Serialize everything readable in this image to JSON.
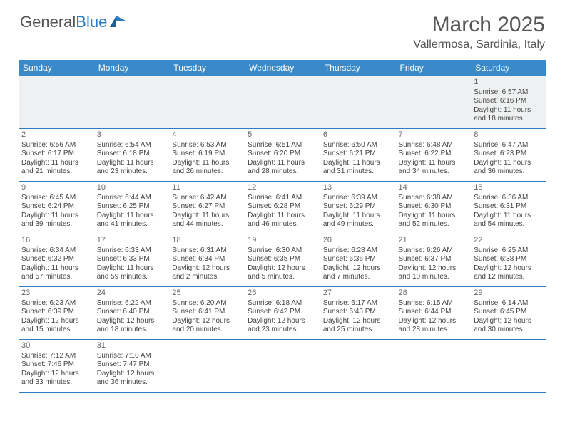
{
  "logo": {
    "general": "General",
    "blue": "Blue"
  },
  "title": "March 2025",
  "location": "Vallermosa, Sardinia, Italy",
  "colors": {
    "header_bg": "#3a89c9",
    "border": "#2d7bc0",
    "empty_bg": "#eff0f1",
    "text": "#444444"
  },
  "day_names": [
    "Sunday",
    "Monday",
    "Tuesday",
    "Wednesday",
    "Thursday",
    "Friday",
    "Saturday"
  ],
  "first_weekday_index": 6,
  "days": [
    {
      "n": 1,
      "sr": "6:57 AM",
      "ss": "6:16 PM",
      "dl": "11 hours and 18 minutes."
    },
    {
      "n": 2,
      "sr": "6:56 AM",
      "ss": "6:17 PM",
      "dl": "11 hours and 21 minutes."
    },
    {
      "n": 3,
      "sr": "6:54 AM",
      "ss": "6:18 PM",
      "dl": "11 hours and 23 minutes."
    },
    {
      "n": 4,
      "sr": "6:53 AM",
      "ss": "6:19 PM",
      "dl": "11 hours and 26 minutes."
    },
    {
      "n": 5,
      "sr": "6:51 AM",
      "ss": "6:20 PM",
      "dl": "11 hours and 28 minutes."
    },
    {
      "n": 6,
      "sr": "6:50 AM",
      "ss": "6:21 PM",
      "dl": "11 hours and 31 minutes."
    },
    {
      "n": 7,
      "sr": "6:48 AM",
      "ss": "6:22 PM",
      "dl": "11 hours and 34 minutes."
    },
    {
      "n": 8,
      "sr": "6:47 AM",
      "ss": "6:23 PM",
      "dl": "11 hours and 36 minutes."
    },
    {
      "n": 9,
      "sr": "6:45 AM",
      "ss": "6:24 PM",
      "dl": "11 hours and 39 minutes."
    },
    {
      "n": 10,
      "sr": "6:44 AM",
      "ss": "6:25 PM",
      "dl": "11 hours and 41 minutes."
    },
    {
      "n": 11,
      "sr": "6:42 AM",
      "ss": "6:27 PM",
      "dl": "11 hours and 44 minutes."
    },
    {
      "n": 12,
      "sr": "6:41 AM",
      "ss": "6:28 PM",
      "dl": "11 hours and 46 minutes."
    },
    {
      "n": 13,
      "sr": "6:39 AM",
      "ss": "6:29 PM",
      "dl": "11 hours and 49 minutes."
    },
    {
      "n": 14,
      "sr": "6:38 AM",
      "ss": "6:30 PM",
      "dl": "11 hours and 52 minutes."
    },
    {
      "n": 15,
      "sr": "6:36 AM",
      "ss": "6:31 PM",
      "dl": "11 hours and 54 minutes."
    },
    {
      "n": 16,
      "sr": "6:34 AM",
      "ss": "6:32 PM",
      "dl": "11 hours and 57 minutes."
    },
    {
      "n": 17,
      "sr": "6:33 AM",
      "ss": "6:33 PM",
      "dl": "11 hours and 59 minutes."
    },
    {
      "n": 18,
      "sr": "6:31 AM",
      "ss": "6:34 PM",
      "dl": "12 hours and 2 minutes."
    },
    {
      "n": 19,
      "sr": "6:30 AM",
      "ss": "6:35 PM",
      "dl": "12 hours and 5 minutes."
    },
    {
      "n": 20,
      "sr": "6:28 AM",
      "ss": "6:36 PM",
      "dl": "12 hours and 7 minutes."
    },
    {
      "n": 21,
      "sr": "6:26 AM",
      "ss": "6:37 PM",
      "dl": "12 hours and 10 minutes."
    },
    {
      "n": 22,
      "sr": "6:25 AM",
      "ss": "6:38 PM",
      "dl": "12 hours and 12 minutes."
    },
    {
      "n": 23,
      "sr": "6:23 AM",
      "ss": "6:39 PM",
      "dl": "12 hours and 15 minutes."
    },
    {
      "n": 24,
      "sr": "6:22 AM",
      "ss": "6:40 PM",
      "dl": "12 hours and 18 minutes."
    },
    {
      "n": 25,
      "sr": "6:20 AM",
      "ss": "6:41 PM",
      "dl": "12 hours and 20 minutes."
    },
    {
      "n": 26,
      "sr": "6:18 AM",
      "ss": "6:42 PM",
      "dl": "12 hours and 23 minutes."
    },
    {
      "n": 27,
      "sr": "6:17 AM",
      "ss": "6:43 PM",
      "dl": "12 hours and 25 minutes."
    },
    {
      "n": 28,
      "sr": "6:15 AM",
      "ss": "6:44 PM",
      "dl": "12 hours and 28 minutes."
    },
    {
      "n": 29,
      "sr": "6:14 AM",
      "ss": "6:45 PM",
      "dl": "12 hours and 30 minutes."
    },
    {
      "n": 30,
      "sr": "7:12 AM",
      "ss": "7:46 PM",
      "dl": "12 hours and 33 minutes."
    },
    {
      "n": 31,
      "sr": "7:10 AM",
      "ss": "7:47 PM",
      "dl": "12 hours and 36 minutes."
    }
  ],
  "labels": {
    "sunrise": "Sunrise:",
    "sunset": "Sunset:",
    "daylight": "Daylight:"
  }
}
